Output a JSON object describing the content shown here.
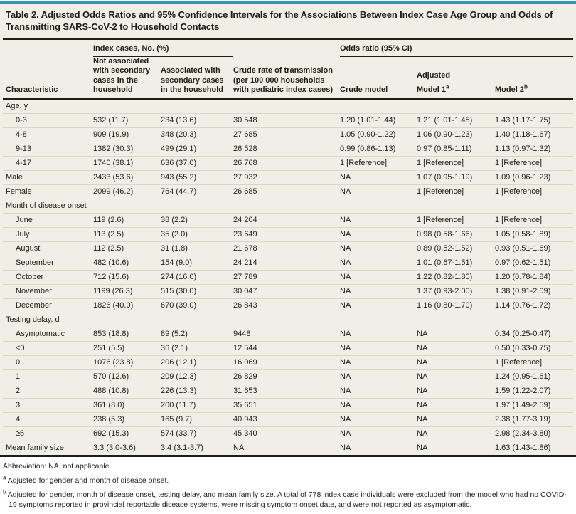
{
  "title": "Table 2. Adjusted Odds Ratios and 95% Confidence Intervals for the Associations Between Index Case Age Group and Odds of Transmitting SARS-CoV-2 to Household Contacts",
  "colors": {
    "top_accent": "#3494b2",
    "bottom_accent": "#5f6062",
    "table_background": "#f1efe5",
    "rule": "#1d1d1b",
    "row_separator": "#d9d7cb"
  },
  "table": {
    "group_headers": {
      "index_cases": "Index cases, No. (%)",
      "odds_ratio": "Odds ratio (95% CI)",
      "adjusted": "Adjusted"
    },
    "columns": {
      "characteristic": "Characteristic",
      "not_associated": "Not associated with secondary cases in the household",
      "associated": "Associated with secondary cases in the household",
      "crude_rate": "Crude rate of transmission (per 100 000 households with pediatric index cases)",
      "crude_model": "Crude model",
      "model1": "Model 1",
      "model1_sup": "a",
      "model2": "Model 2",
      "model2_sup": "b"
    },
    "rows": [
      {
        "type": "section",
        "label": "Age, y"
      },
      {
        "type": "data",
        "indent": true,
        "label": "0-3",
        "values": [
          "532 (11.7)",
          "234 (13.6)",
          "30 548",
          "1.20 (1.01-1.44)",
          "1.21 (1.01-1.45)",
          "1.43 (1.17-1.75)"
        ]
      },
      {
        "type": "data",
        "indent": true,
        "label": "4-8",
        "values": [
          "909 (19.9)",
          "348 (20.3)",
          "27 685",
          "1.05 (0.90-1.22)",
          "1.06 (0.90-1.23)",
          "1.40 (1.18-1.67)"
        ]
      },
      {
        "type": "data",
        "indent": true,
        "label": "9-13",
        "values": [
          "1382 (30.3)",
          "499 (29.1)",
          "26 528",
          "0.99 (0.86-1.13)",
          "0.97 (0.85-1.11)",
          "1.13 (0.97-1.32)"
        ]
      },
      {
        "type": "data",
        "indent": true,
        "label": "4-17",
        "values": [
          "1740 (38.1)",
          "636 (37.0)",
          "26 768",
          "1 [Reference]",
          "1 [Reference]",
          "1 [Reference]"
        ]
      },
      {
        "type": "data",
        "indent": false,
        "label": "Male",
        "values": [
          "2433 (53.6)",
          "943 (55.2)",
          "27 932",
          "NA",
          "1.07 (0.95-1.19)",
          "1.09 (0.96-1.23)"
        ]
      },
      {
        "type": "data",
        "indent": false,
        "label": "Female",
        "values": [
          "2099 (46.2)",
          "764 (44.7)",
          "26 685",
          "NA",
          "1 [Reference]",
          "1 [Reference]"
        ]
      },
      {
        "type": "section",
        "label": "Month of disease onset"
      },
      {
        "type": "data",
        "indent": true,
        "label": "June",
        "values": [
          "119 (2.6)",
          "38 (2.2)",
          "24 204",
          "NA",
          "1 [Reference]",
          "1 [Reference]"
        ]
      },
      {
        "type": "data",
        "indent": true,
        "label": "July",
        "values": [
          "113 (2.5)",
          "35 (2.0)",
          "23 649",
          "NA",
          "0.98 (0.58-1.66)",
          "1.05 (0.58-1.89)"
        ]
      },
      {
        "type": "data",
        "indent": true,
        "label": "August",
        "values": [
          "112 (2.5)",
          "31 (1.8)",
          "21 678",
          "NA",
          "0.89 (0.52-1.52)",
          "0.93 (0.51-1.69)"
        ]
      },
      {
        "type": "data",
        "indent": true,
        "label": "September",
        "values": [
          "482 (10.6)",
          "154 (9.0)",
          "24 214",
          "NA",
          "1.01 (0.67-1.51)",
          "0.97 (0.62-1.51)"
        ]
      },
      {
        "type": "data",
        "indent": true,
        "label": "October",
        "values": [
          "712 (15.6)",
          "274 (16.0)",
          "27 789",
          "NA",
          "1.22 (0.82-1.80)",
          "1.20 (0.78-1.84)"
        ]
      },
      {
        "type": "data",
        "indent": true,
        "label": "November",
        "values": [
          "1199 (26.3)",
          "515 (30.0)",
          "30 047",
          "NA",
          "1.37 (0.93-2.00)",
          "1.38 (0.91-2.09)"
        ]
      },
      {
        "type": "data",
        "indent": true,
        "label": "December",
        "values": [
          "1826 (40.0)",
          "670 (39.0)",
          "26 843",
          "NA",
          "1.16 (0.80-1.70)",
          "1.14 (0.76-1.72)"
        ]
      },
      {
        "type": "section",
        "label": "Testing delay, d"
      },
      {
        "type": "data",
        "indent": true,
        "label": "Asymptomatic",
        "values": [
          "853 (18.8)",
          "89 (5.2)",
          "9448",
          "NA",
          "NA",
          "0.34 (0.25-0.47)"
        ]
      },
      {
        "type": "data",
        "indent": true,
        "label": "<0",
        "values": [
          "251 (5.5)",
          "36 (2.1)",
          "12 544",
          "NA",
          "NA",
          "0.50 (0.33-0.75)"
        ]
      },
      {
        "type": "data",
        "indent": true,
        "label": "0",
        "values": [
          "1076 (23.8)",
          "206 (12.1)",
          "16 069",
          "NA",
          "NA",
          "1 [Reference]"
        ]
      },
      {
        "type": "data",
        "indent": true,
        "label": "1",
        "values": [
          "570 (12.6)",
          "209 (12.3)",
          "26 829",
          "NA",
          "NA",
          "1.24 (0.95-1.61)"
        ]
      },
      {
        "type": "data",
        "indent": true,
        "label": "2",
        "values": [
          "488 (10.8)",
          "226 (13.3)",
          "31 653",
          "NA",
          "NA",
          "1.59 (1.22-2.07)"
        ]
      },
      {
        "type": "data",
        "indent": true,
        "label": "3",
        "values": [
          "361 (8.0)",
          "200 (11.7)",
          "35 651",
          "NA",
          "NA",
          "1.97 (1.49-2.59)"
        ]
      },
      {
        "type": "data",
        "indent": true,
        "label": "4",
        "values": [
          "238 (5.3)",
          "165 (9.7)",
          "40 943",
          "NA",
          "NA",
          "2.38 (1.77-3.19)"
        ]
      },
      {
        "type": "data",
        "indent": true,
        "label": "≥5",
        "values": [
          "692 (15.3)",
          "574 (33.7)",
          "45 340",
          "NA",
          "NA",
          "2.98 (2.34-3.80)"
        ]
      },
      {
        "type": "data",
        "indent": false,
        "label": "Mean family size",
        "values": [
          "3.3 (3.0-3.6)",
          "3.4 (3.1-3.7)",
          "NA",
          "NA",
          "NA",
          "1.63 (1.43-1.86)"
        ]
      }
    ]
  },
  "footnotes": {
    "abbreviation": "Abbreviation: NA, not applicable.",
    "a_marker": "a",
    "a_text": "Adjusted for gender and month of disease onset.",
    "b_marker": "b",
    "b_text": "Adjusted for gender, month of disease onset, testing delay, and mean family size. A total of 778 index case individuals were excluded from the model who had no COVID-19 symptoms reported in provincial reportable disease systems, were missing symptom onset date, and were not reported as asymptomatic."
  }
}
